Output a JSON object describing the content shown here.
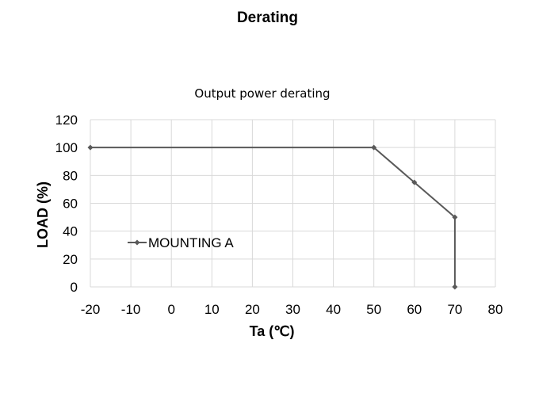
{
  "page": {
    "title": "Derating"
  },
  "chart_data": {
    "type": "line",
    "title": "Output power derating",
    "xlabel": "Ta (℃)",
    "ylabel": "LOAD (%)",
    "xlim": [
      -20,
      80
    ],
    "ylim": [
      0,
      120
    ],
    "xticks": [
      -20,
      -10,
      0,
      10,
      20,
      30,
      40,
      50,
      60,
      70,
      80
    ],
    "yticks": [
      0,
      20,
      40,
      60,
      80,
      100,
      120
    ],
    "grid": true,
    "legend_position": "left",
    "series": [
      {
        "name": "MOUNTING A",
        "color": "#595959",
        "marker": "diamond",
        "x": [
          -20,
          50,
          60,
          70,
          70
        ],
        "y": [
          100,
          100,
          75,
          50,
          0
        ]
      }
    ]
  }
}
